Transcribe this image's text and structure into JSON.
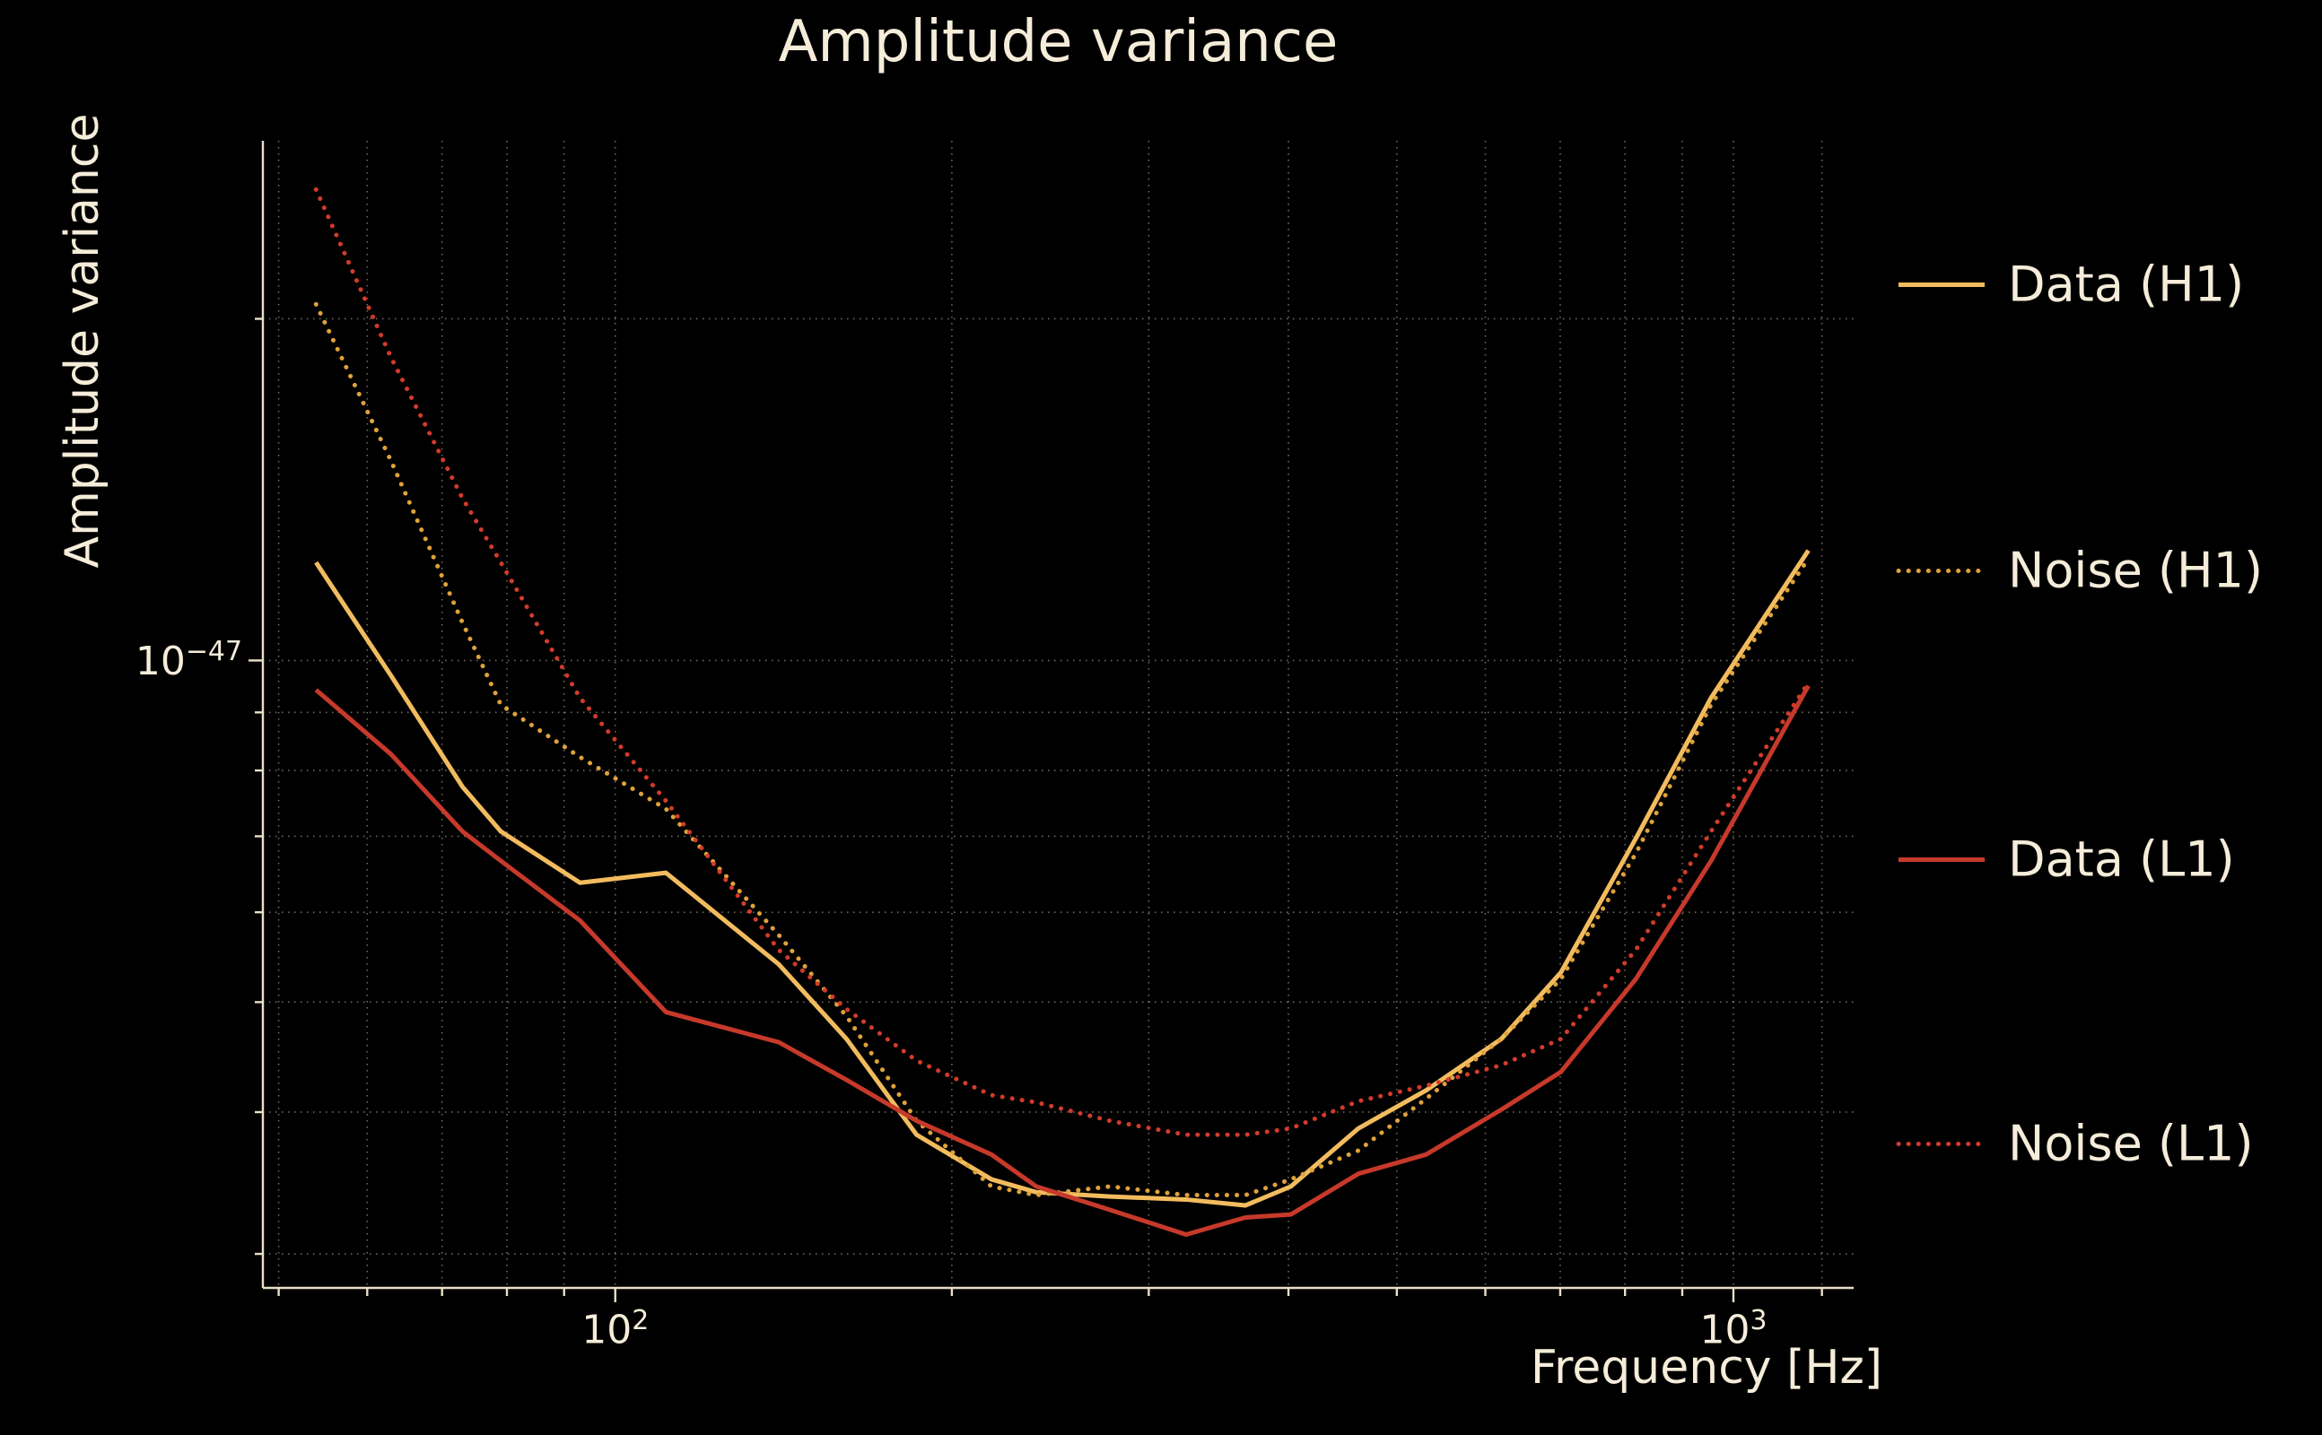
{
  "chart_data": {
    "type": "line",
    "title": "Amplitude variance",
    "xlabel": "Frequency [Hz]",
    "ylabel": "Amplitude variance",
    "x_scale": "log",
    "y_scale": "log",
    "xlim": [
      48.4,
      1281
    ],
    "ylim": [
      2.8e-48,
      2.87e-47
    ],
    "grid": true,
    "legend_position": "right-outside",
    "x_ticks": [
      {
        "base": "10",
        "exp": "2",
        "value": 100
      },
      {
        "base": "10",
        "exp": "3",
        "value": 1000
      }
    ],
    "y_ticks": [
      {
        "base": "10",
        "exp": "−47",
        "value": 1e-47
      }
    ],
    "x_gridlines": [
      50,
      60,
      70,
      80,
      90,
      100,
      200,
      300,
      400,
      500,
      600,
      700,
      800,
      900,
      1000,
      1200
    ],
    "y_gridlines": [
      3e-48,
      4e-48,
      5e-48,
      6e-48,
      7e-48,
      8e-48,
      9e-48,
      1e-47,
      2e-47
    ],
    "x": [
      54,
      63,
      73,
      79,
      93,
      111,
      140,
      161,
      186,
      217,
      238,
      277,
      324,
      366,
      402,
      462,
      531,
      620,
      701,
      818,
      955,
      1167
    ],
    "series": [
      {
        "name": "Data (H1)",
        "color": "#f2bc5e",
        "line_style": "solid",
        "values": [
          1.22e-47,
          9.7e-48,
          7.74e-48,
          7.07e-48,
          6.37e-48,
          6.5e-48,
          5.4e-48,
          4.64e-48,
          3.82e-48,
          3.49e-48,
          3.4e-48,
          3.37e-48,
          3.35e-48,
          3.31e-48,
          3.44e-48,
          3.87e-48,
          4.18e-48,
          4.64e-48,
          5.31e-48,
          6.97e-48,
          9.27e-48,
          1.25e-47
        ]
      },
      {
        "name": "Noise (H1)",
        "color": "#dfa23c",
        "line_style": "dotted",
        "values": [
          2.06e-47,
          1.5e-47,
          1.08e-47,
          9.14e-48,
          8.22e-48,
          7.4e-48,
          5.73e-48,
          4.86e-48,
          3.93e-48,
          3.44e-48,
          3.38e-48,
          3.44e-48,
          3.38e-48,
          3.38e-48,
          3.49e-48,
          3.7e-48,
          4.11e-48,
          4.64e-48,
          5.24e-48,
          6.76e-48,
          9.14e-48,
          1.23e-47
        ]
      },
      {
        "name": "Data (L1)",
        "color": "#c6392b",
        "line_style": "solid",
        "values": [
          9.42e-48,
          8.27e-48,
          7.07e-48,
          6.66e-48,
          5.9e-48,
          4.9e-48,
          4.61e-48,
          4.27e-48,
          3.93e-48,
          3.67e-48,
          3.44e-48,
          3.28e-48,
          3.12e-48,
          3.23e-48,
          3.25e-48,
          3.53e-48,
          3.67e-48,
          4.02e-48,
          4.34e-48,
          5.24e-48,
          6.66e-48,
          9.5e-48
        ]
      },
      {
        "name": "Noise (L1)",
        "color": "#d23b2b",
        "line_style": "dotted",
        "values": [
          2.6e-47,
          1.85e-47,
          1.39e-47,
          1.22e-47,
          9.27e-48,
          7.52e-48,
          5.56e-48,
          4.93e-48,
          4.44e-48,
          4.14e-48,
          4.08e-48,
          3.93e-48,
          3.82e-48,
          3.82e-48,
          3.87e-48,
          4.09e-48,
          4.22e-48,
          4.4e-48,
          4.64e-48,
          5.56e-48,
          7.07e-48,
          9.56e-48
        ]
      }
    ],
    "colors": {
      "background": "#000000",
      "text": "#f5ecd9",
      "axis": "#eae0c8",
      "grid": "#ded3b8"
    }
  }
}
